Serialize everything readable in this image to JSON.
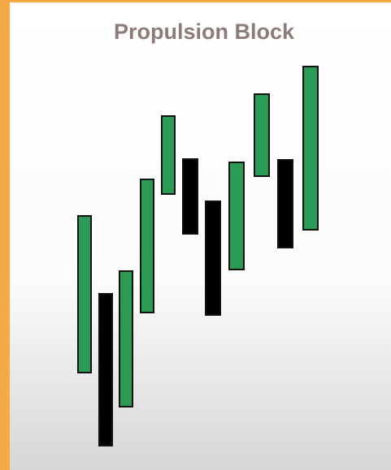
{
  "header": {
    "title": "Propulsion Block"
  }
}
